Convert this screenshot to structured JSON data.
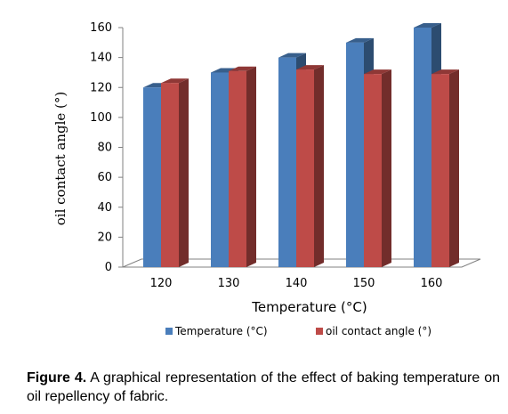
{
  "chart_data": {
    "type": "bar",
    "categories": [
      "120",
      "130",
      "140",
      "150",
      "160"
    ],
    "series": [
      {
        "name": "Temperature (°C)",
        "values": [
          120,
          130,
          140,
          150,
          160
        ],
        "color": "#4a7ebb"
      },
      {
        "name": "oil contact angle  (°)",
        "values": [
          123,
          131,
          132,
          129,
          129
        ],
        "color": "#be4b48"
      }
    ],
    "xlabel": "Temperature (°C)",
    "ylabel": "oil contact angle  (°)",
    "ylim": [
      0,
      160
    ],
    "yticks": [
      "0",
      "20",
      "40",
      "60",
      "80",
      "100",
      "120",
      "140",
      "160"
    ],
    "legend_position": "bottom",
    "grid": false
  },
  "caption": {
    "label": "Figure 4.",
    "text": " A graphical representation of the effect of baking temperature on oil repellency of fabric."
  }
}
